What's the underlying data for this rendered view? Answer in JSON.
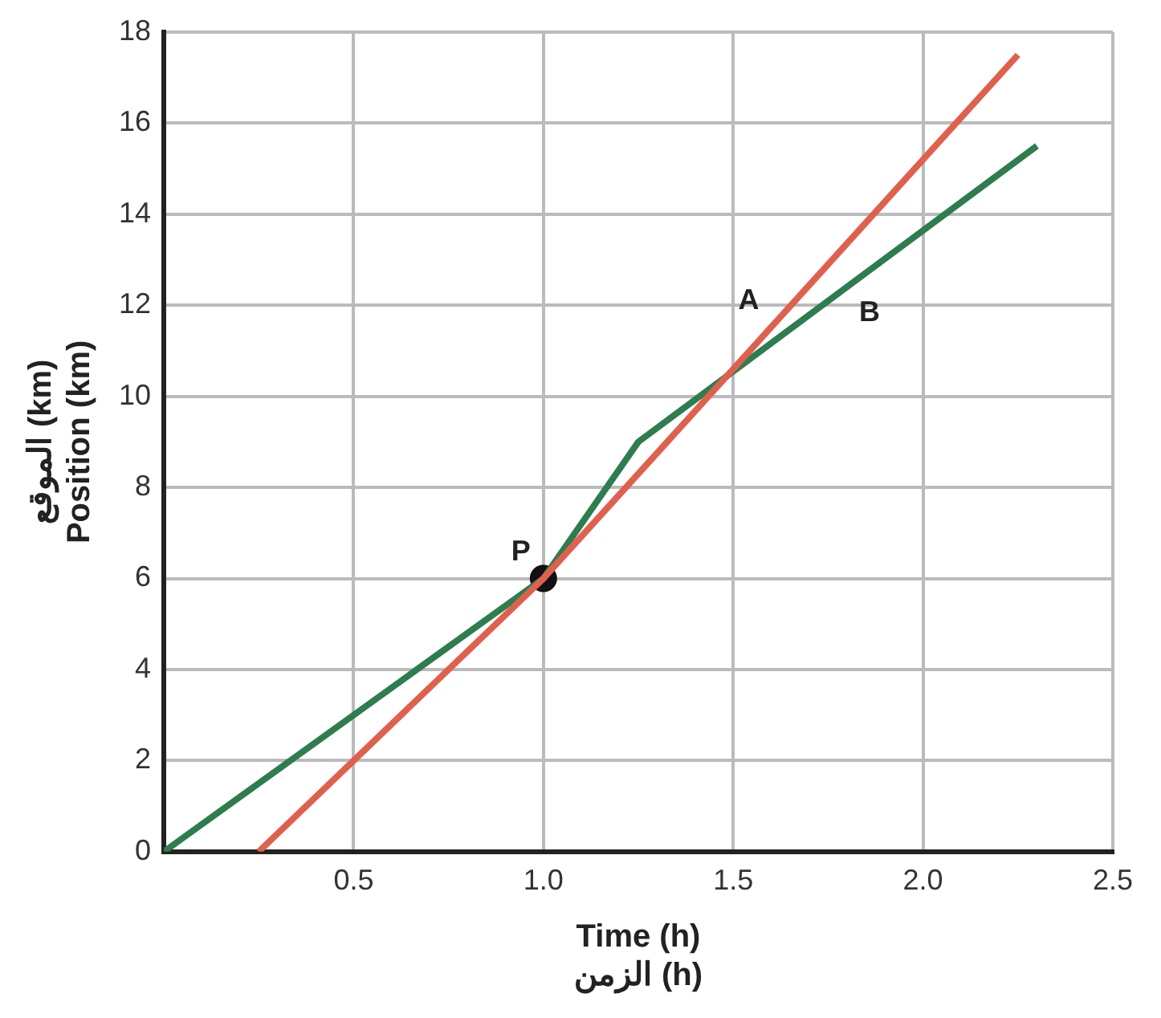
{
  "chart_data": {
    "type": "line",
    "xlabel": "Time (h)\nالزمن (h)",
    "ylabel": "الموقع (km)\nPosition (km)",
    "series": [
      {
        "color": "#e0604f",
        "x": [
          0.25,
          1.0,
          2.25
        ],
        "values": [
          0,
          6,
          17.5
        ],
        "marker": "none"
      },
      {
        "color": "#2e7d4f",
        "x": [
          0,
          1.0,
          1.25,
          2.3
        ],
        "values": [
          0,
          6,
          9,
          15.5
        ],
        "marker": "none"
      },
      {
        "type": "scatter",
        "color": "#111111",
        "x": [
          1.0
        ],
        "values": [
          6
        ],
        "marker": "circle"
      }
    ],
    "annotations": [
      {
        "text": "A",
        "x": 1.6,
        "y": 11.52
      },
      {
        "text": "B",
        "x": 1.8,
        "y": 12.4
      },
      {
        "text": "P",
        "x": 1.0,
        "y": 6
      }
    ],
    "xlim": [
      0,
      2.5
    ],
    "xticks": [
      0.5,
      {
        "value": 1,
        "label": "1.0"
      },
      1.5,
      {
        "value": 2,
        "label": "2.0"
      },
      2.5
    ],
    "ylim": [
      0,
      18
    ],
    "yticks": [
      0,
      2,
      4,
      6,
      8,
      10,
      12,
      14,
      16,
      18
    ],
    "grid": true,
    "legend": false,
    "line_style": "solid"
  }
}
